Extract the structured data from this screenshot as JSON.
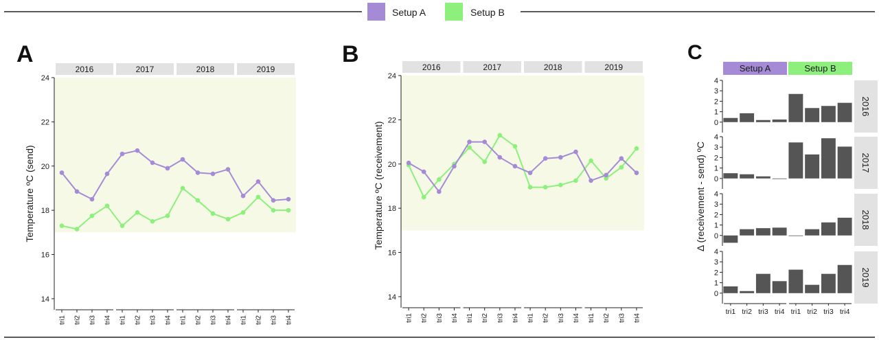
{
  "legend": {
    "items": [
      {
        "label": "Setup A",
        "color": "#a58bd6"
      },
      {
        "label": "Setup B",
        "color": "#8ef07c"
      }
    ]
  },
  "colors": {
    "setupA": "#a58bd6",
    "setupB": "#8ef07c",
    "band": "#f5f9e6",
    "strip": "#e2e2e2",
    "bar": "#555555"
  },
  "panels": {
    "a": {
      "letter": "A",
      "ylabel": "Temperature ºC (send)"
    },
    "b": {
      "letter": "B",
      "ylabel": "Temperature ºC (receivement)"
    },
    "c": {
      "letter": "C",
      "ylabel": "Δ (receivement - send) ºC"
    }
  },
  "chart_data": [
    {
      "id": "A",
      "type": "line",
      "ylabel": "Temperature ºC (send)",
      "facets": [
        "2016",
        "2017",
        "2018",
        "2019"
      ],
      "categories": [
        "tri1",
        "tri2",
        "tri3",
        "tri4"
      ],
      "ylim": [
        13.5,
        24
      ],
      "yticks": [
        14,
        16,
        18,
        20,
        22,
        24
      ],
      "shaded_band": [
        17,
        24
      ],
      "series": [
        {
          "name": "Setup A",
          "values": [
            [
              19.7,
              18.85,
              18.5,
              19.65
            ],
            [
              20.55,
              20.7,
              20.15,
              19.9
            ],
            [
              20.3,
              19.7,
              19.65,
              19.85
            ],
            [
              18.65,
              19.3,
              18.45,
              18.5
            ]
          ]
        },
        {
          "name": "Setup B",
          "values": [
            [
              17.3,
              17.15,
              17.75,
              18.2
            ],
            [
              17.3,
              17.9,
              17.5,
              17.75
            ],
            [
              19.0,
              18.45,
              17.85,
              17.6
            ],
            [
              17.9,
              18.6,
              18.0,
              18.0
            ]
          ]
        }
      ]
    },
    {
      "id": "B",
      "type": "line",
      "ylabel": "Temperature ºC (receivement)",
      "facets": [
        "2016",
        "2017",
        "2018",
        "2019"
      ],
      "categories": [
        "tri1",
        "tri2",
        "tri3",
        "tri4"
      ],
      "ylim": [
        13.5,
        24
      ],
      "yticks": [
        14,
        16,
        18,
        20,
        22,
        24
      ],
      "shaded_band": [
        17,
        24
      ],
      "series": [
        {
          "name": "Setup A",
          "values": [
            [
              20.05,
              19.65,
              18.75,
              19.9
            ],
            [
              21.0,
              21.0,
              20.3,
              19.9
            ],
            [
              19.6,
              20.25,
              20.3,
              20.55
            ],
            [
              19.25,
              19.5,
              20.25,
              19.6
            ]
          ]
        },
        {
          "name": "Setup B",
          "values": [
            [
              19.95,
              18.5,
              19.3,
              20.0
            ],
            [
              20.75,
              20.1,
              21.3,
              20.8
            ],
            [
              18.95,
              18.95,
              19.05,
              19.25
            ],
            [
              20.15,
              19.35,
              19.85,
              20.7
            ]
          ]
        }
      ]
    },
    {
      "id": "C",
      "type": "bar",
      "ylabel": "Δ (receivement - send) ºC",
      "columns": [
        "Setup A",
        "Setup B"
      ],
      "rows": [
        "2016",
        "2017",
        "2018",
        "2019"
      ],
      "categories": [
        "tri1",
        "tri2",
        "tri3",
        "tri4"
      ],
      "ylim": [
        -1,
        4
      ],
      "yticks": [
        0,
        1,
        2,
        3,
        4
      ],
      "values": {
        "2016": {
          "Setup A": [
            0.4,
            0.85,
            0.2,
            0.25
          ],
          "Setup B": [
            2.7,
            1.35,
            1.55,
            1.85
          ]
        },
        "2017": {
          "Setup A": [
            0.5,
            0.4,
            0.2,
            0.0
          ],
          "Setup B": [
            3.45,
            2.3,
            3.85,
            3.05
          ]
        },
        "2018": {
          "Setup A": [
            -0.7,
            0.6,
            0.7,
            0.75
          ],
          "Setup B": [
            0.0,
            0.6,
            1.25,
            1.7
          ]
        },
        "2019": {
          "Setup A": [
            0.65,
            0.2,
            1.85,
            1.15
          ],
          "Setup B": [
            2.25,
            0.8,
            1.85,
            2.7
          ]
        }
      }
    }
  ]
}
